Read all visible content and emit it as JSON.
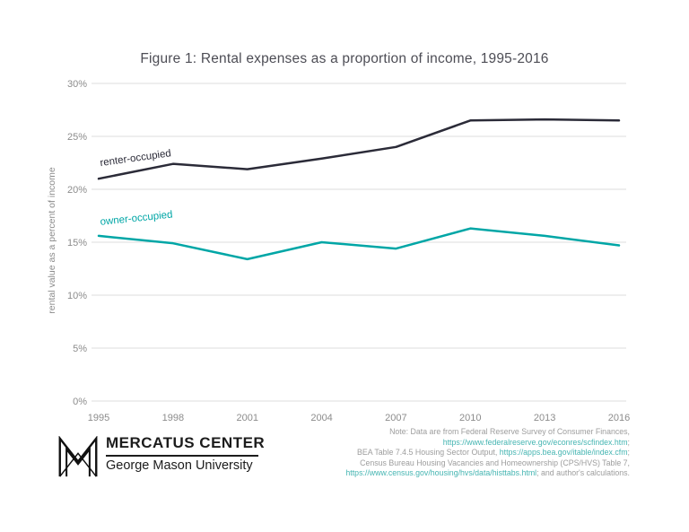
{
  "chart_data": {
    "type": "line",
    "title": "Figure 1: Rental expenses as a proportion of income, 1995-2016",
    "xlabel": "",
    "ylabel": "rental value as a percent of income",
    "categories": [
      "1995",
      "1998",
      "2001",
      "2004",
      "2007",
      "2010",
      "2013",
      "2016"
    ],
    "ylim": [
      0,
      30
    ],
    "ytick_step": 5,
    "ytick_suffix": "%",
    "grid": true,
    "legend_position": "inline-labels",
    "series": [
      {
        "name": "renter-occupied",
        "color": "#2b2b38",
        "values": [
          21.0,
          22.4,
          21.9,
          22.9,
          24.0,
          26.5,
          26.6,
          26.5
        ],
        "label_angle": -8,
        "label_dx": 2,
        "label_dy": -14
      },
      {
        "name": "owner-occupied",
        "color": "#00a6a6",
        "values": [
          15.6,
          14.9,
          13.4,
          15.0,
          14.4,
          16.3,
          15.6,
          14.7
        ],
        "label_angle": -6,
        "label_dx": 2,
        "label_dy": -12
      }
    ]
  },
  "colors": {
    "accent_teal": "#00a6a6",
    "line_dark": "#2b2b38",
    "grid": "#dedede",
    "tick_text": "#8c8c8c",
    "note_text": "#9d9d9d",
    "note_link": "#45b5b2",
    "title_text": "#4d4d55"
  },
  "logo": {
    "org": "MERCATUS CENTER",
    "university": "George Mason University"
  },
  "note": {
    "lines": [
      [
        {
          "t": "Note: Data are from Federal Reserve Survey of Consumer Finances,",
          "link": false
        }
      ],
      [
        {
          "t": "https://www.federalreserve.gov/econres/scfindex.htm",
          "link": true
        },
        {
          "t": ";",
          "link": false
        }
      ],
      [
        {
          "t": "BEA Table 7.4.5 Housing Sector Output, ",
          "link": false
        },
        {
          "t": "https://apps.bea.gov/itable/index.cfm",
          "link": true
        },
        {
          "t": ";",
          "link": false
        }
      ],
      [
        {
          "t": "Census Bureau Housing Vacancies and Homeownership (CPS/HVS) Table 7,",
          "link": false
        }
      ],
      [
        {
          "t": "https://www.census.gov/housing/hvs/data/histtabs.html",
          "link": true
        },
        {
          "t": "; and author's calculations.",
          "link": false
        }
      ]
    ]
  }
}
